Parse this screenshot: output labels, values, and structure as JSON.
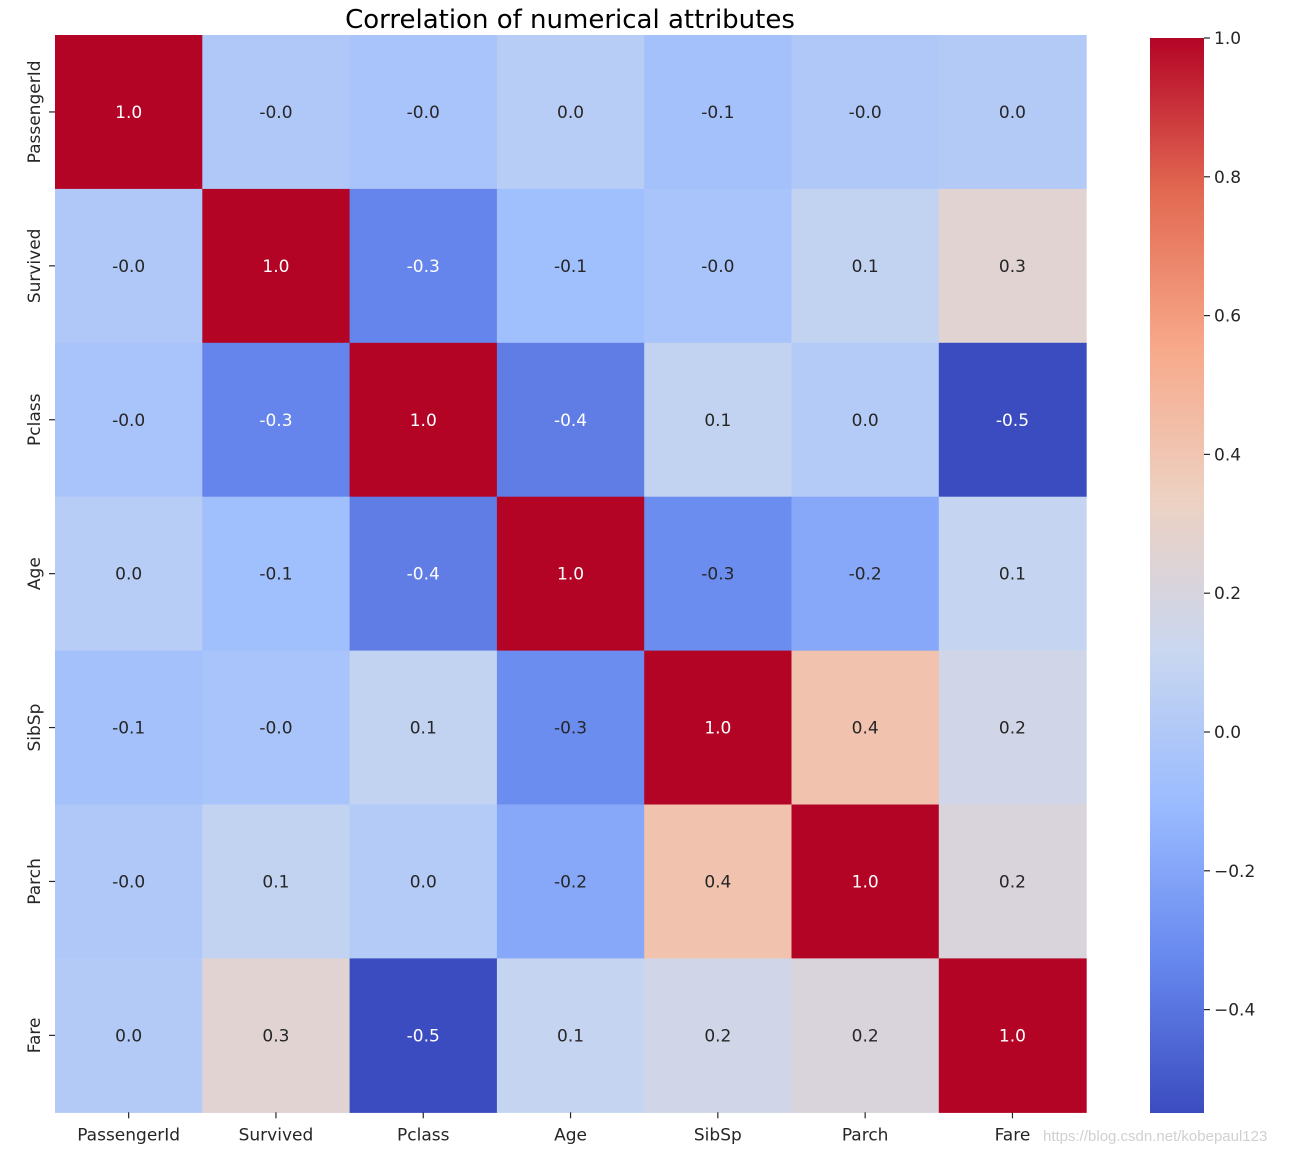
{
  "chart_data": {
    "type": "heatmap",
    "title": "Correlation of numerical attributes",
    "xlabel": "",
    "ylabel": "",
    "x_labels": [
      "PassengerId",
      "Survived",
      "Pclass",
      "Age",
      "SibSp",
      "Parch",
      "Fare"
    ],
    "y_labels": [
      "PassengerId",
      "Survived",
      "Pclass",
      "Age",
      "SibSp",
      "Parch",
      "Fare"
    ],
    "values": [
      [
        1.0,
        -0.005,
        -0.035,
        0.037,
        -0.058,
        -0.002,
        0.013
      ],
      [
        -0.005,
        1.0,
        -0.338,
        -0.077,
        -0.035,
        0.082,
        0.257
      ],
      [
        -0.035,
        -0.338,
        1.0,
        -0.369,
        0.083,
        0.018,
        -0.549
      ],
      [
        0.037,
        -0.077,
        -0.369,
        1.0,
        -0.308,
        -0.189,
        0.096
      ],
      [
        -0.058,
        -0.035,
        0.083,
        -0.308,
        1.0,
        0.415,
        0.16
      ],
      [
        -0.002,
        0.082,
        0.018,
        -0.189,
        0.415,
        1.0,
        0.216
      ],
      [
        0.013,
        0.257,
        -0.549,
        0.096,
        0.16,
        0.216,
        1.0
      ]
    ],
    "annotations": [
      [
        "1.0",
        "-0.0",
        "-0.0",
        "0.0",
        "-0.1",
        "-0.0",
        "0.0"
      ],
      [
        "-0.0",
        "1.0",
        "-0.3",
        "-0.1",
        "-0.0",
        "0.1",
        "0.3"
      ],
      [
        "-0.0",
        "-0.3",
        "1.0",
        "-0.4",
        "0.1",
        "0.0",
        "-0.5"
      ],
      [
        "0.0",
        "-0.1",
        "-0.4",
        "1.0",
        "-0.3",
        "-0.2",
        "0.1"
      ],
      [
        "-0.1",
        "-0.0",
        "0.1",
        "-0.3",
        "1.0",
        "0.4",
        "0.2"
      ],
      [
        "-0.0",
        "0.1",
        "0.0",
        "-0.2",
        "0.4",
        "1.0",
        "0.2"
      ],
      [
        "0.0",
        "0.3",
        "-0.5",
        "0.1",
        "0.2",
        "0.2",
        "1.0"
      ]
    ],
    "colormap": "coolwarm",
    "vmin": -0.549,
    "vmax": 1.0,
    "colorbar_ticks": [
      1.0,
      0.8,
      0.6,
      0.4,
      0.2,
      0.0,
      -0.2,
      -0.4
    ],
    "colorbar_tick_labels": [
      "1.0",
      "0.8",
      "0.6",
      "0.4",
      "0.2",
      "0.0",
      "−0.2",
      "−0.4"
    ],
    "colorbar_stops": [
      "#3b4cc0",
      "#6788ee",
      "#9abbff",
      "#c9d7f0",
      "#edd1c2",
      "#f7a889",
      "#e26952",
      "#b40426"
    ],
    "text_color_light": "#ffffff",
    "text_color_dark": "#262626"
  },
  "watermark": "https://blog.csdn.net/kobepaul123"
}
